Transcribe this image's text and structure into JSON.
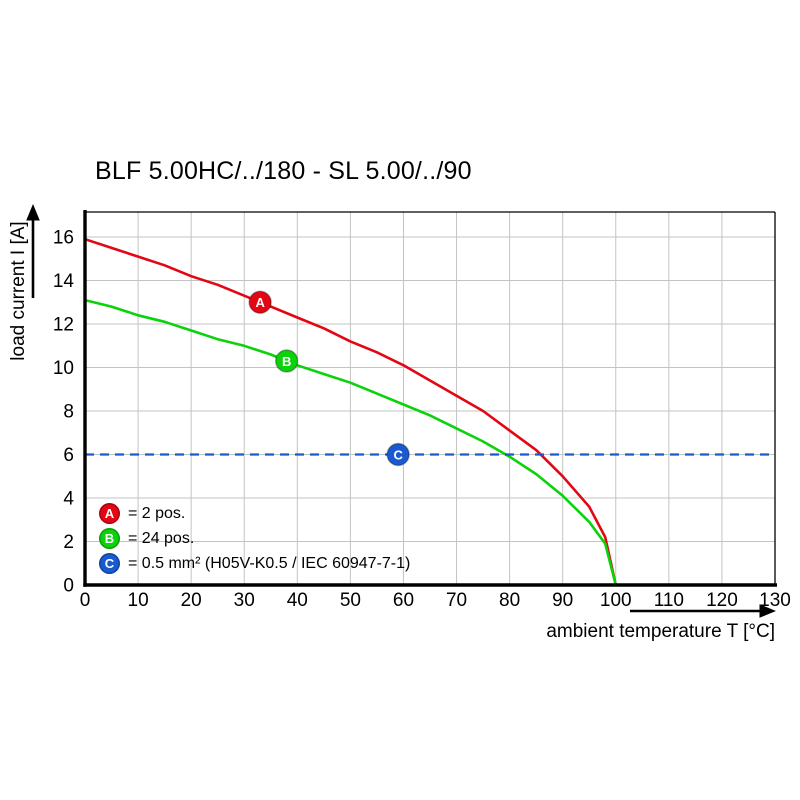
{
  "title": "BLF 5.00HC/../180 - SL 5.00/../90",
  "axes": {
    "x_label": "ambient temperature T [°C]",
    "y_label": "load current I [A]"
  },
  "legend": [
    {
      "id": "A",
      "label": "= 2 pos.",
      "color": "#e30613"
    },
    {
      "id": "B",
      "label": "= 24 pos.",
      "color": "#0cd20c"
    },
    {
      "id": "C",
      "label": "= 0.5 mm² (H05V-K0.5 / IEC 60947-7-1)",
      "color": "#1a5ad0"
    }
  ],
  "chart_data": {
    "type": "line",
    "title": "BLF 5.00HC/../180 - SL 5.00/../90",
    "xlabel": "ambient temperature T [°C]",
    "ylabel": "load current I [A]",
    "xlim": [
      0,
      130
    ],
    "ylim": [
      0,
      16
    ],
    "x_ticks": [
      0,
      10,
      20,
      30,
      40,
      50,
      60,
      70,
      80,
      90,
      100,
      110,
      120,
      130
    ],
    "y_ticks": [
      0,
      2,
      4,
      6,
      8,
      10,
      12,
      14,
      16
    ],
    "grid": true,
    "legend_position": "lower-left",
    "series": [
      {
        "name": "A",
        "description": "2 pos.",
        "color": "#e30613",
        "style": "solid",
        "x": [
          0,
          5,
          10,
          15,
          20,
          25,
          30,
          35,
          40,
          45,
          50,
          55,
          60,
          65,
          70,
          75,
          80,
          85,
          90,
          95,
          98,
          100
        ],
        "y": [
          15.9,
          15.5,
          15.1,
          14.7,
          14.2,
          13.8,
          13.3,
          12.8,
          12.3,
          11.8,
          11.2,
          10.7,
          10.1,
          9.4,
          8.7,
          8.0,
          7.1,
          6.2,
          5.0,
          3.6,
          2.2,
          0
        ],
        "marker": {
          "x": 33,
          "y": 13.0,
          "label": "A"
        }
      },
      {
        "name": "B",
        "description": "24 pos.",
        "color": "#0cd20c",
        "style": "solid",
        "x": [
          0,
          5,
          10,
          15,
          20,
          25,
          30,
          35,
          40,
          45,
          50,
          55,
          60,
          65,
          70,
          75,
          80,
          85,
          90,
          95,
          98,
          100
        ],
        "y": [
          13.1,
          12.8,
          12.4,
          12.1,
          11.7,
          11.3,
          11.0,
          10.6,
          10.1,
          9.7,
          9.3,
          8.8,
          8.3,
          7.8,
          7.2,
          6.6,
          5.9,
          5.1,
          4.1,
          2.9,
          1.9,
          0
        ],
        "marker": {
          "x": 38,
          "y": 10.3,
          "label": "B"
        }
      },
      {
        "name": "C",
        "description": "0.5 mm² (H05V-K0.5 / IEC 60947-7-1)",
        "color": "#1a5ad0",
        "style": "dashed",
        "hline": 6,
        "marker": {
          "x": 59,
          "y": 6,
          "label": "C"
        }
      }
    ]
  }
}
